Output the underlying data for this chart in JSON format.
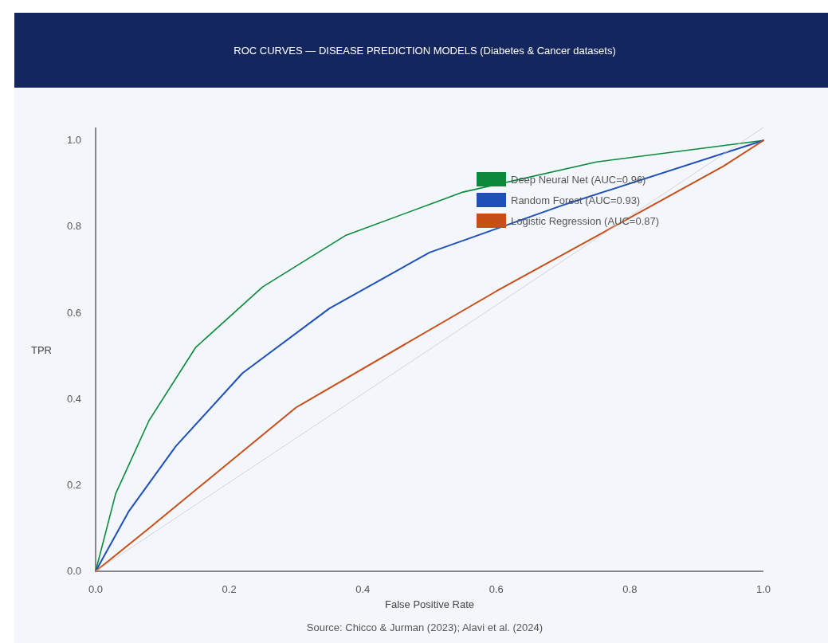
{
  "chart_data": {
    "type": "line",
    "title": "ROC CURVES — DISEASE PREDICTION MODELS (Diabetes & Cancer datasets)",
    "xlabel": "False Positive Rate",
    "ylabel": "TPR",
    "annotations": [
      "Source: Chicco & Jurman (2023); Alavi et al. (2024)"
    ],
    "xlim": [
      0,
      1
    ],
    "ylim": [
      0,
      1.03
    ],
    "xticks": [
      {
        "value": 0,
        "label": "0.0"
      },
      {
        "value": 0.2,
        "label": "0.2"
      },
      {
        "value": 0.4,
        "label": "0.4"
      },
      {
        "value": 0.6,
        "label": "0.6"
      },
      {
        "value": 0.8,
        "label": "0.8"
      },
      {
        "value": 1,
        "label": "1.0"
      }
    ],
    "yticks": [
      {
        "value": 0,
        "label": "0.0"
      },
      {
        "value": 0.2,
        "label": "0.2"
      },
      {
        "value": 0.4,
        "label": "0.4"
      },
      {
        "value": 0.6,
        "label": "0.6"
      },
      {
        "value": 0.8,
        "label": "0.8"
      },
      {
        "value": 1,
        "label": "1.0"
      }
    ],
    "grid": false,
    "legend": "top",
    "marker": "none",
    "series": [
      {
        "name": "Deep Neural Net (AUC=0.96)",
        "color": "#0a8a3a",
        "x": [
          0,
          0.03,
          0.08,
          0.15,
          0.25,
          0.375,
          0.55,
          0.75,
          1
        ],
        "values": [
          0,
          0.18,
          0.35,
          0.52,
          0.66,
          0.78,
          0.88,
          0.95,
          1
        ]
      },
      {
        "name": "Random Forest (AUC=0.93)",
        "color": "#1f4fb8",
        "x": [
          0,
          0.05,
          0.12,
          0.22,
          0.35,
          0.5,
          0.7,
          1
        ],
        "values": [
          0,
          0.14,
          0.29,
          0.46,
          0.61,
          0.74,
          0.85,
          1
        ]
      },
      {
        "name": "Logistic Regression (AUC=0.87)",
        "color": "#c84e17",
        "x": [
          0,
          0.08,
          0.3,
          0.6,
          0.94,
          1
        ],
        "values": [
          0,
          0.1,
          0.38,
          0.65,
          0.94,
          1
        ]
      },
      {
        "color": "#cccccc",
        "x": [
          0,
          1
        ],
        "values": [
          0,
          1.03
        ]
      }
    ]
  }
}
